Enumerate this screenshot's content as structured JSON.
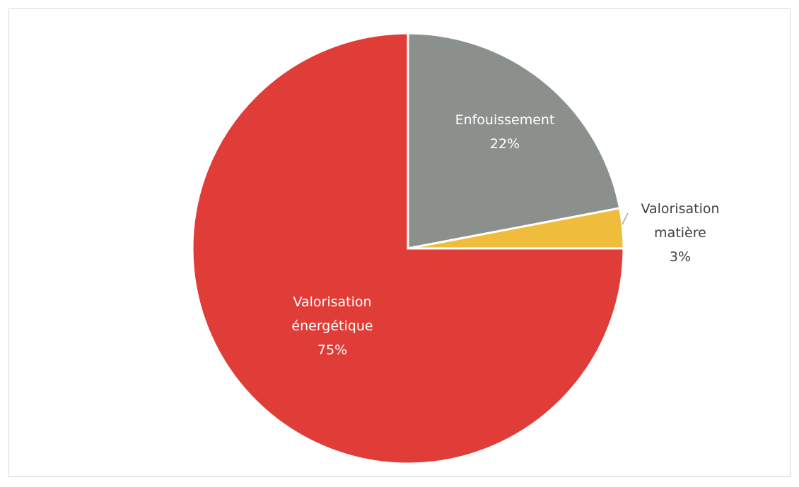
{
  "chart_data": {
    "type": "pie",
    "categories": [
      "Enfouissement",
      "Valorisation matière",
      "Valorisation énergétique"
    ],
    "values": [
      22,
      3,
      75
    ],
    "value_labels": [
      "22%",
      "3%",
      "75%"
    ],
    "colors": [
      "#8c908d",
      "#f0bc3c",
      "#e03d38"
    ]
  }
}
